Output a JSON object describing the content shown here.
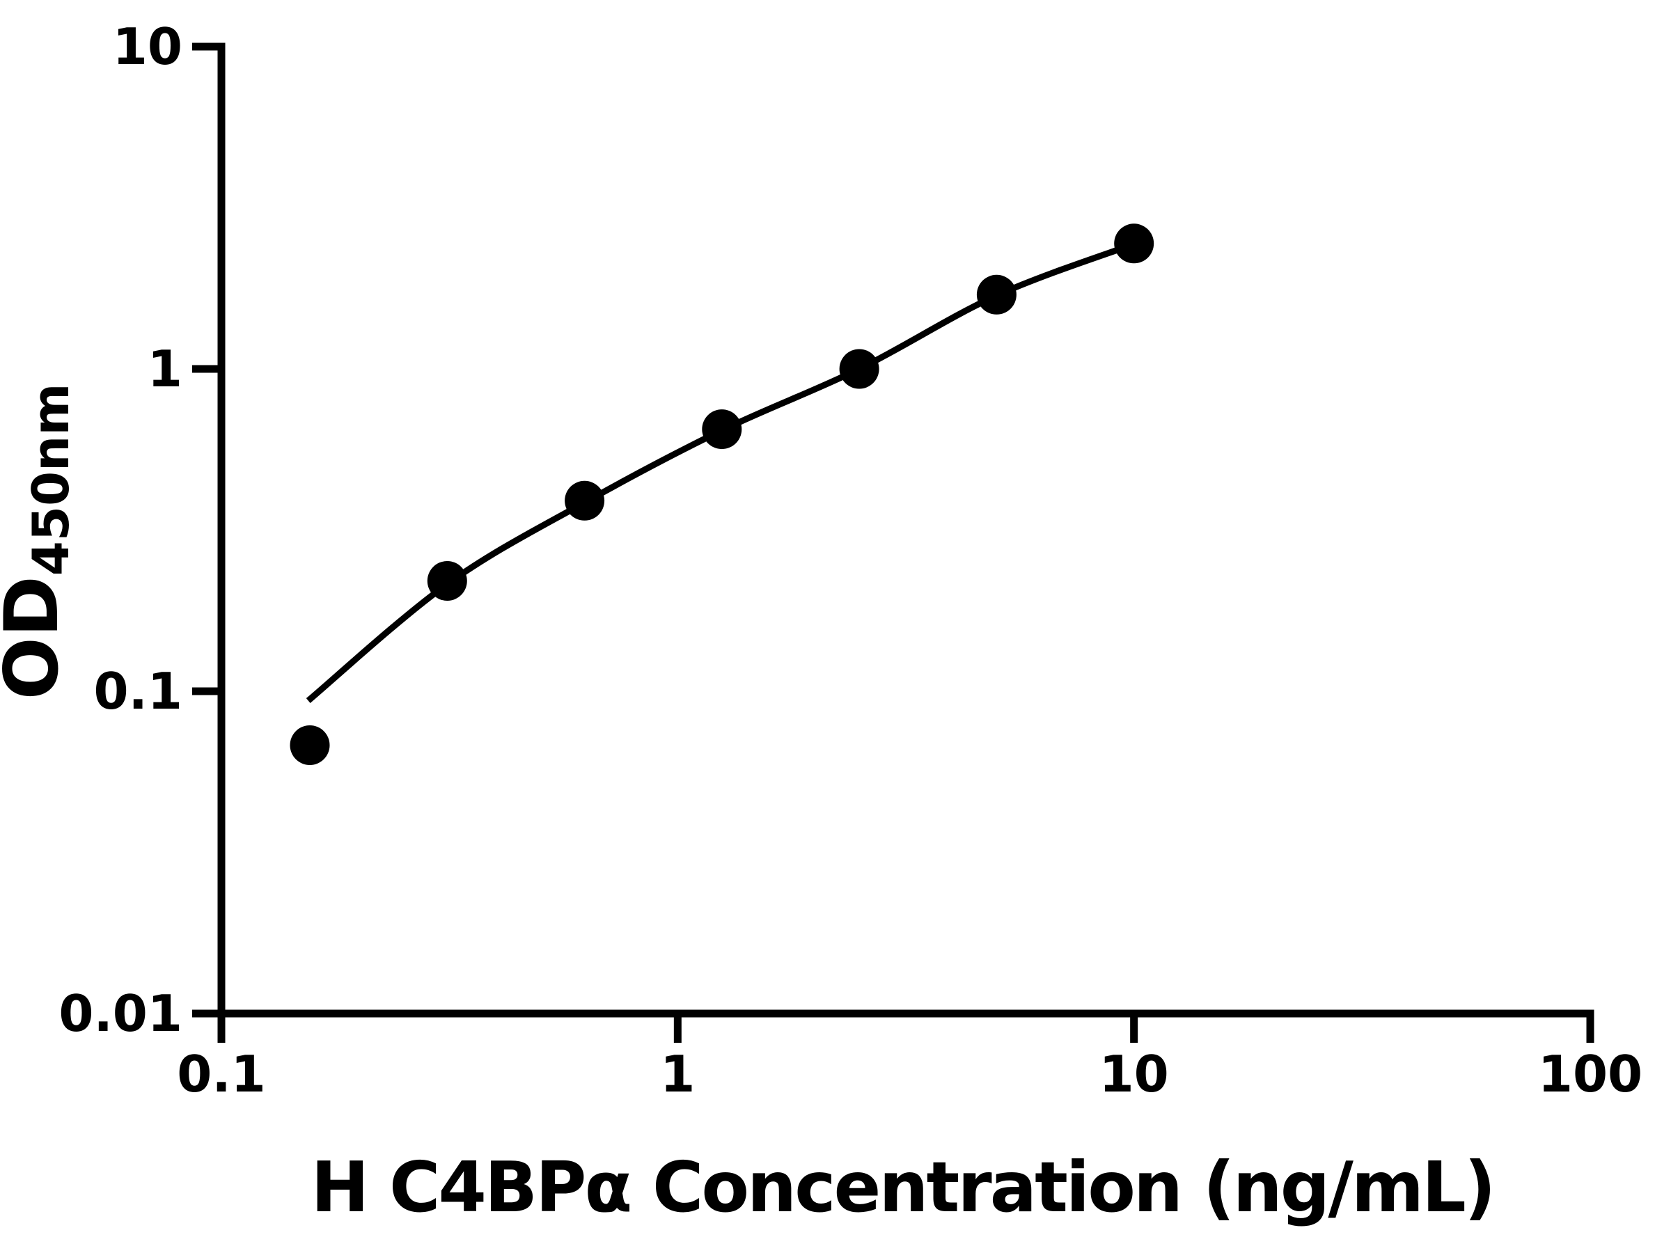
{
  "figure": {
    "background": "#ffffff",
    "ink_color": "#000000"
  },
  "chart_data": {
    "type": "scatter",
    "title": "",
    "xlabel": "H C4BPα Concentration (ng/mL)",
    "ylabel_main": "OD",
    "ylabel_sub": "450nm",
    "x_scale": "log",
    "y_scale": "log",
    "xlim": [
      0.1,
      100
    ],
    "ylim": [
      0.01,
      10
    ],
    "grid": false,
    "legend": "none",
    "marker_color": "#000000",
    "line_color": "#000000",
    "x_ticks": [
      {
        "value": 0.1,
        "label": "0.1"
      },
      {
        "value": 1,
        "label": "1"
      },
      {
        "value": 10,
        "label": "10"
      },
      {
        "value": 100,
        "label": "100"
      }
    ],
    "y_ticks": [
      {
        "value": 10,
        "label": "10"
      },
      {
        "value": 1,
        "label": "1"
      },
      {
        "value": 0.1,
        "label": "0.1"
      },
      {
        "value": 0.01,
        "label": "0.01"
      }
    ],
    "points": [
      {
        "x": 0.15625,
        "y": 0.068
      },
      {
        "x": 0.3125,
        "y": 0.22
      },
      {
        "x": 0.625,
        "y": 0.39
      },
      {
        "x": 1.25,
        "y": 0.65
      },
      {
        "x": 2.5,
        "y": 1.0
      },
      {
        "x": 5,
        "y": 1.7
      },
      {
        "x": 10,
        "y": 2.45
      }
    ],
    "curve_points": [
      {
        "x": 0.155,
        "y": 0.0935
      },
      {
        "x": 0.3125,
        "y": 0.215
      },
      {
        "x": 0.625,
        "y": 0.385
      },
      {
        "x": 1.25,
        "y": 0.645
      },
      {
        "x": 2.5,
        "y": 1.0
      },
      {
        "x": 5,
        "y": 1.69
      },
      {
        "x": 10,
        "y": 2.44
      }
    ]
  }
}
